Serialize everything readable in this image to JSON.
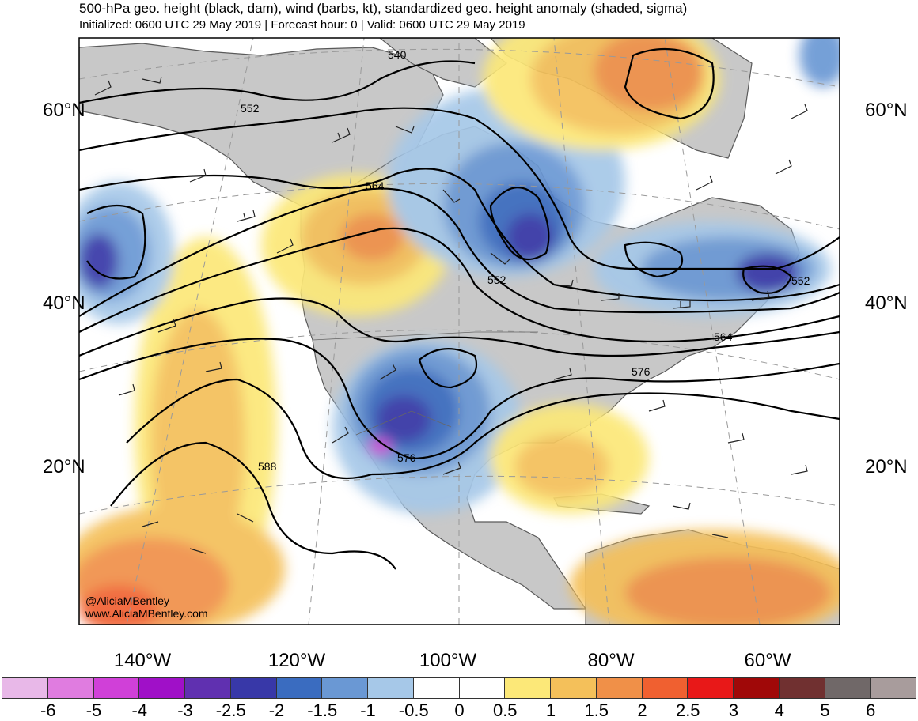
{
  "header": {
    "title": "500-hPa geo. height (black, dam), wind (barbs, kt), standardized geo. height anomaly (shaded, sigma)",
    "subtitle": "Initialized: 0600 UTC 29 May 2019 | Forecast hour: 0 | Valid: 0600 UTC 29 May 2019"
  },
  "map": {
    "lat_labels": [
      "60°N",
      "40°N",
      "20°N"
    ],
    "lon_labels": [
      "140°W",
      "120°W",
      "100°W",
      "80°W",
      "60°W"
    ],
    "contour_labels": [
      "540",
      "552",
      "564",
      "552",
      "552",
      "564",
      "576",
      "576",
      "588"
    ],
    "credit": [
      "@AliciaMBentley",
      "www.AliciaMBentley.com"
    ]
  },
  "colorbar": {
    "labels": [
      "-6",
      "-5",
      "-4",
      "-3",
      "-2.5",
      "-2",
      "-1.5",
      "-1",
      "-0.5",
      "0",
      "0.5",
      "1",
      "1.5",
      "2",
      "2.5",
      "3",
      "4",
      "5",
      "6"
    ],
    "colors": [
      "#e8b8e8",
      "#e07ce0",
      "#d040d8",
      "#a010c8",
      "#6030b0",
      "#3838a8",
      "#3a6cc0",
      "#6a98d4",
      "#a6c8e8",
      "#ffffff",
      "#ffffff",
      "#fce878",
      "#f4c05a",
      "#f09048",
      "#f06030",
      "#e81818",
      "#a00808",
      "#703030",
      "#706868",
      "#a89c9c"
    ]
  },
  "colors": {
    "land": "#c8c8c8",
    "ocean": "#ffffff",
    "contour": "#000000",
    "coast": "#555555"
  }
}
